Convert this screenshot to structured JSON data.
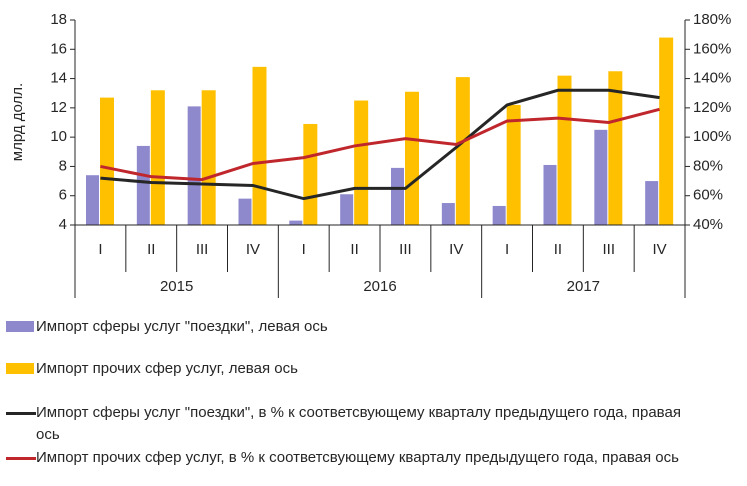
{
  "chart_data": {
    "type": "bar-line",
    "y_label": "млрд долл.",
    "categories": [
      "I",
      "II",
      "III",
      "IV",
      "I",
      "II",
      "III",
      "IV",
      "I",
      "II",
      "III",
      "IV"
    ],
    "year_labels": [
      "2015",
      "2016",
      "2017"
    ],
    "ylim": [
      4,
      18
    ],
    "yticks": [
      4,
      6,
      8,
      10,
      12,
      14,
      16,
      18
    ],
    "y2lim": [
      40,
      180
    ],
    "y2ticks": [
      {
        "value": 40,
        "label": "40%"
      },
      {
        "value": 60,
        "label": "60%"
      },
      {
        "value": 80,
        "label": "80%"
      },
      {
        "value": 100,
        "label": "100%"
      },
      {
        "value": 120,
        "label": "120%"
      },
      {
        "value": 140,
        "label": "140%"
      },
      {
        "value": 160,
        "label": "160%"
      },
      {
        "value": 180,
        "label": "180%"
      }
    ],
    "series": [
      {
        "name": "Импорт сферы услуг \"поездки\", левая ось",
        "type": "bar",
        "color": "#8e88cc",
        "values": [
          7.4,
          9.4,
          12.1,
          5.8,
          4.3,
          6.1,
          7.9,
          5.5,
          5.3,
          8.1,
          10.5,
          7.0
        ]
      },
      {
        "name": "Импорт прочих сфер услуг, левая ось",
        "type": "bar",
        "color": "#ffc000",
        "values": [
          12.7,
          13.2,
          13.2,
          14.8,
          10.9,
          12.5,
          13.1,
          14.1,
          12.2,
          14.2,
          14.5,
          16.8
        ]
      },
      {
        "name": "Импорт сферы услуг \"поездки\", в % к соответсвующему кварталу предыдущего года, правая ось",
        "type": "line",
        "axis": "y2",
        "color": "#262626",
        "values": [
          72,
          69,
          68,
          67,
          58,
          65,
          65,
          93,
          122,
          132,
          132,
          127
        ]
      },
      {
        "name": "Импорт прочих сфер услуг, в % к соответсвующему кварталу предыдущего года, правая ось",
        "type": "line",
        "axis": "y2",
        "color": "#c0272d",
        "values": [
          80,
          73,
          71,
          82,
          86,
          94,
          99,
          95,
          111,
          113,
          110,
          119
        ]
      }
    ]
  }
}
